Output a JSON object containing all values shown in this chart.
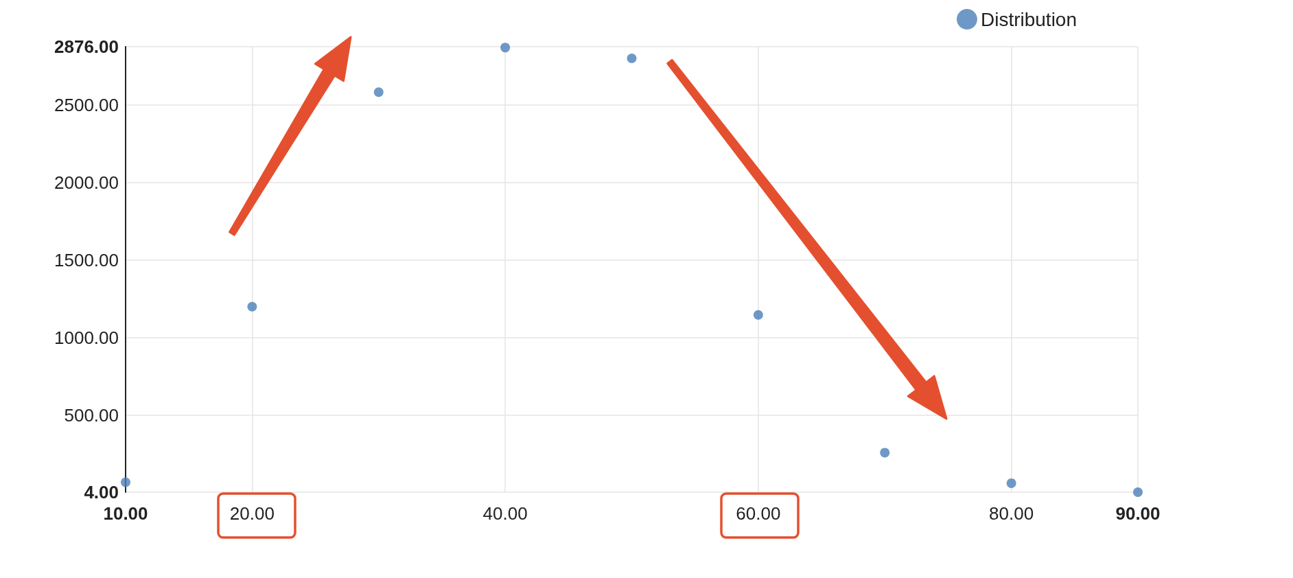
{
  "chart_data": {
    "type": "scatter",
    "legend": "top right",
    "grid": true,
    "marker": "circle",
    "x": [
      10,
      20,
      30,
      40,
      50,
      60,
      70,
      80,
      90
    ],
    "series": [
      {
        "name": "Distribution",
        "color": "#4a7fb8",
        "values": [
          68,
          1200,
          2583,
          2870,
          2801,
          1147,
          259,
          62,
          4
        ]
      }
    ],
    "xlim": [
      10,
      90
    ],
    "xticks": [
      {
        "value": 10,
        "label": "10.00"
      },
      {
        "value": 20,
        "label": "20.00"
      },
      {
        "value": 40,
        "label": "40.00"
      },
      {
        "value": 60,
        "label": "60.00"
      },
      {
        "value": 80,
        "label": "80.00"
      },
      {
        "value": 90,
        "label": "90.00"
      }
    ],
    "ylim": [
      4,
      2876
    ],
    "yticks": [
      {
        "value": 4,
        "label": "4.00"
      },
      {
        "value": 500,
        "label": "500.00"
      },
      {
        "value": 1000,
        "label": "1000.00"
      },
      {
        "value": 1500,
        "label": "1500.00"
      },
      {
        "value": 2000,
        "label": "2000.00"
      },
      {
        "value": 2500,
        "label": "2500.00"
      },
      {
        "value": 2876,
        "label": "2876.00"
      }
    ]
  }
}
